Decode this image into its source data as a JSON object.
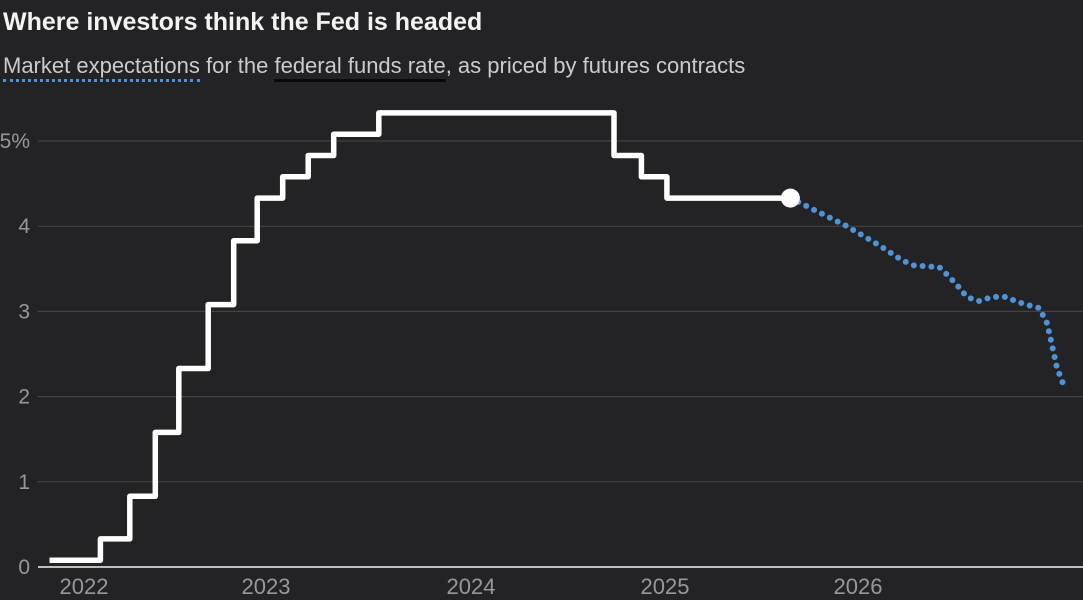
{
  "header": {
    "title": "Where investors think the Fed is headed",
    "subtitle_segments": [
      {
        "text": "Market expectations",
        "underline": "dotted"
      },
      {
        "text": " for the ",
        "underline": "none"
      },
      {
        "text": "federal funds rate",
        "underline": "solid"
      },
      {
        "text": ", as priced by futures contracts",
        "underline": "none"
      }
    ]
  },
  "colors": {
    "background": "#232325",
    "title": "#f3f3f4",
    "subtitle": "#cbcbce",
    "gridline": "#48484b",
    "axis_line": "#bfbfc2",
    "tick_label": "#98989c",
    "actual_line": "#ffffff",
    "expected_line": "#4f93d7"
  },
  "chart_data": {
    "type": "line",
    "title": "Where investors think the Fed is headed",
    "subtitle": "Market expectations for the federal funds rate, as priced by futures contracts",
    "unit": "percent",
    "grid": true,
    "legend_position": "none",
    "x_axis": {
      "ticks": [
        "2022",
        "2023",
        "2024",
        "2025",
        "2026"
      ],
      "range_years": [
        2021.85,
        2027.15
      ]
    },
    "y_axis": {
      "min": 0,
      "max": 5.5,
      "ticks": [
        {
          "value": 0,
          "label": "0"
        },
        {
          "value": 1,
          "label": "1"
        },
        {
          "value": 2,
          "label": "2"
        },
        {
          "value": 3,
          "label": "3"
        },
        {
          "value": 4,
          "label": "4"
        },
        {
          "value": 5,
          "label": "5%"
        }
      ]
    },
    "series": [
      {
        "name": "actual-federal-funds-rate",
        "label": "federal funds rate",
        "style": "step-solid",
        "color": "#ffffff",
        "end_marker": true,
        "points": [
          [
            2021.88,
            0.08
          ],
          [
            2022.14,
            0.33
          ],
          [
            2022.29,
            0.83
          ],
          [
            2022.42,
            1.58
          ],
          [
            2022.54,
            2.33
          ],
          [
            2022.69,
            3.08
          ],
          [
            2022.82,
            3.83
          ],
          [
            2022.94,
            4.33
          ],
          [
            2023.07,
            4.58
          ],
          [
            2023.2,
            4.83
          ],
          [
            2023.33,
            5.08
          ],
          [
            2023.56,
            5.33
          ],
          [
            2024.76,
            4.83
          ],
          [
            2024.9,
            4.58
          ],
          [
            2025.03,
            4.33
          ],
          [
            2025.66,
            4.33
          ]
        ]
      },
      {
        "name": "futures-implied-expectations",
        "label": "Market expectations",
        "style": "dotted",
        "color": "#4f93d7",
        "end_marker": false,
        "points": [
          [
            2025.66,
            4.33
          ],
          [
            2025.94,
            4.01
          ],
          [
            2026.11,
            3.78
          ],
          [
            2026.23,
            3.6
          ],
          [
            2026.29,
            3.54
          ],
          [
            2026.42,
            3.52
          ],
          [
            2026.46,
            3.43
          ],
          [
            2026.51,
            3.31
          ],
          [
            2026.56,
            3.17
          ],
          [
            2026.62,
            3.12
          ],
          [
            2026.69,
            3.17
          ],
          [
            2026.76,
            3.17
          ],
          [
            2026.82,
            3.11
          ],
          [
            2026.88,
            3.07
          ],
          [
            2026.93,
            3.04
          ],
          [
            2026.97,
            2.86
          ],
          [
            2026.99,
            2.66
          ],
          [
            2027.02,
            2.34
          ],
          [
            2027.06,
            2.1
          ]
        ]
      }
    ]
  }
}
